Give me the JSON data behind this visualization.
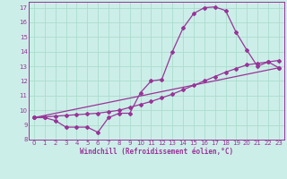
{
  "xlabel": "Windchill (Refroidissement éolien,°C)",
  "bg_color": "#cceee8",
  "line_color": "#993399",
  "grid_color": "#aaddcc",
  "xlim": [
    -0.5,
    23.5
  ],
  "ylim": [
    8,
    17.4
  ],
  "xticks": [
    0,
    1,
    2,
    3,
    4,
    5,
    6,
    7,
    8,
    9,
    10,
    11,
    12,
    13,
    14,
    15,
    16,
    17,
    18,
    19,
    20,
    21,
    22,
    23
  ],
  "yticks": [
    8,
    9,
    10,
    11,
    12,
    13,
    14,
    15,
    16,
    17
  ],
  "line1_x": [
    0,
    1,
    2,
    3,
    4,
    5,
    6,
    7,
    8,
    9,
    10,
    11,
    12,
    13,
    14,
    15,
    16,
    17,
    18,
    19,
    20,
    21,
    22,
    23
  ],
  "line1_y": [
    9.5,
    9.5,
    9.3,
    8.85,
    8.85,
    8.85,
    8.5,
    9.5,
    9.8,
    9.8,
    11.2,
    12.0,
    12.1,
    14.0,
    15.6,
    16.6,
    17.0,
    17.05,
    16.8,
    15.3,
    14.1,
    13.0,
    13.3,
    12.9
  ],
  "line2_x": [
    0,
    1,
    2,
    3,
    4,
    5,
    6,
    7,
    8,
    9,
    10,
    11,
    12,
    13,
    14,
    15,
    16,
    17,
    18,
    19,
    20,
    21,
    22,
    23
  ],
  "line2_y": [
    9.5,
    9.55,
    9.6,
    9.65,
    9.7,
    9.75,
    9.8,
    9.9,
    10.0,
    10.2,
    10.4,
    10.6,
    10.85,
    11.1,
    11.4,
    11.7,
    12.0,
    12.3,
    12.6,
    12.85,
    13.1,
    13.2,
    13.3,
    13.4
  ],
  "line3_x": [
    0,
    23
  ],
  "line3_y": [
    9.5,
    12.9
  ]
}
